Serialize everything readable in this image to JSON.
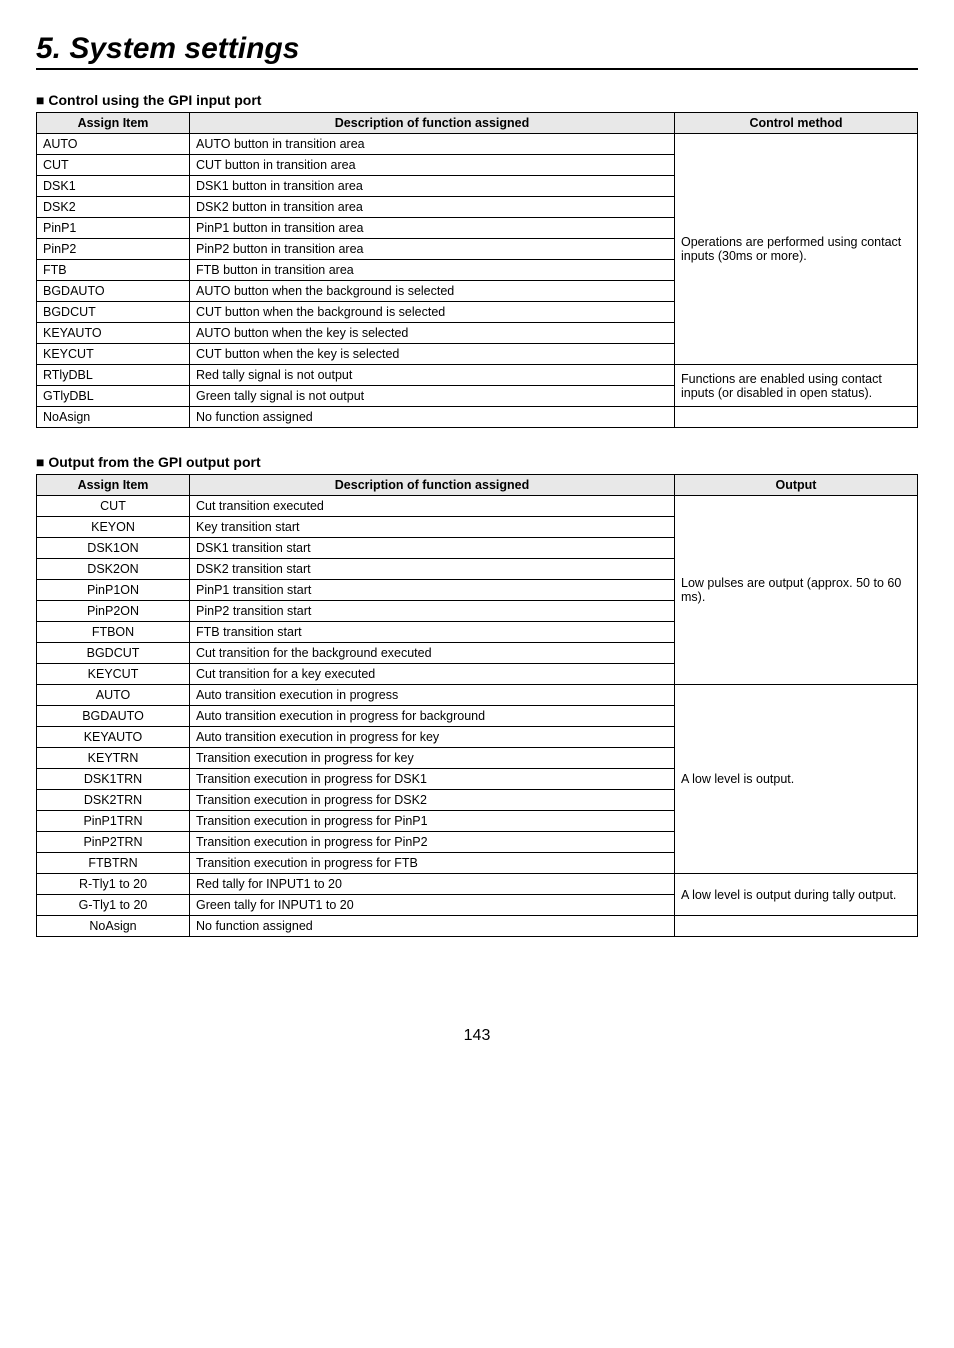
{
  "chapterTitle": "5. System settings",
  "section1": {
    "heading": "Control using the GPI input port",
    "headers": {
      "col1": "Assign Item",
      "col2": "Description of function assigned",
      "col3": "Control method"
    },
    "rows": [
      {
        "item": "AUTO",
        "desc": "AUTO button in transition area"
      },
      {
        "item": "CUT",
        "desc": "CUT button in transition area"
      },
      {
        "item": "DSK1",
        "desc": "DSK1 button in transition area"
      },
      {
        "item": "DSK2",
        "desc": "DSK2 button in transition area"
      },
      {
        "item": "PinP1",
        "desc": "PinP1 button in transition area"
      },
      {
        "item": "PinP2",
        "desc": "PinP2 button in transition area"
      },
      {
        "item": "FTB",
        "desc": "FTB button in transition area"
      },
      {
        "item": "BGDAUTO",
        "desc": "AUTO button when the background is selected"
      },
      {
        "item": "BGDCUT",
        "desc": "CUT button when the background is selected"
      },
      {
        "item": "KEYAUTO",
        "desc": "AUTO button when the key is selected"
      },
      {
        "item": "KEYCUT",
        "desc": "CUT button when the key is selected"
      }
    ],
    "method1": "Operations are performed using contact inputs (30ms or more).",
    "rows2": [
      {
        "item": "RTlyDBL",
        "desc": "Red tally signal is not output"
      },
      {
        "item": "GTlyDBL",
        "desc": "Green tally signal is not output"
      }
    ],
    "method2": "Functions are enabled using contact inputs (or disabled in open status).",
    "lastRow": {
      "item": "NoAsign",
      "desc": "No function assigned"
    }
  },
  "section2": {
    "heading": "Output from the GPI output port",
    "headers": {
      "col1": "Assign Item",
      "col2": "Description of function assigned",
      "col3": "Output"
    },
    "group1": [
      {
        "item": "CUT",
        "desc": "Cut transition executed"
      },
      {
        "item": "KEYON",
        "desc": "Key transition start"
      },
      {
        "item": "DSK1ON",
        "desc": "DSK1 transition start"
      },
      {
        "item": "DSK2ON",
        "desc": "DSK2 transition start"
      },
      {
        "item": "PinP1ON",
        "desc": "PinP1 transition start"
      },
      {
        "item": "PinP2ON",
        "desc": "PinP2 transition start"
      },
      {
        "item": "FTBON",
        "desc": "FTB transition start"
      },
      {
        "item": "BGDCUT",
        "desc": "Cut transition for the background executed"
      },
      {
        "item": "KEYCUT",
        "desc": "Cut transition for a key executed"
      }
    ],
    "output1": "Low pulses are output (approx. 50 to 60 ms).",
    "group2": [
      {
        "item": "AUTO",
        "desc": "Auto transition execution in progress"
      },
      {
        "item": "BGDAUTO",
        "desc": "Auto transition execution in progress for background"
      },
      {
        "item": "KEYAUTO",
        "desc": "Auto transition execution in progress for key"
      },
      {
        "item": "KEYTRN",
        "desc": "Transition execution in progress for key"
      },
      {
        "item": "DSK1TRN",
        "desc": "Transition execution in progress for DSK1"
      },
      {
        "item": "DSK2TRN",
        "desc": "Transition execution in progress for DSK2"
      },
      {
        "item": "PinP1TRN",
        "desc": "Transition execution in progress for PinP1"
      },
      {
        "item": "PinP2TRN",
        "desc": "Transition execution in progress for PinP2"
      },
      {
        "item": "FTBTRN",
        "desc": "Transition execution in progress for FTB"
      }
    ],
    "output2": "A low level is output.",
    "group3": [
      {
        "item": "R-Tly1 to 20",
        "desc": "Red tally for INPUT1 to 20"
      },
      {
        "item": "G-Tly1 to 20",
        "desc": "Green tally for INPUT1 to 20"
      }
    ],
    "output3": "A low level is output during tally output.",
    "lastRow": {
      "item": "NoAsign",
      "desc": "No function assigned"
    }
  },
  "pageNumber": "143"
}
